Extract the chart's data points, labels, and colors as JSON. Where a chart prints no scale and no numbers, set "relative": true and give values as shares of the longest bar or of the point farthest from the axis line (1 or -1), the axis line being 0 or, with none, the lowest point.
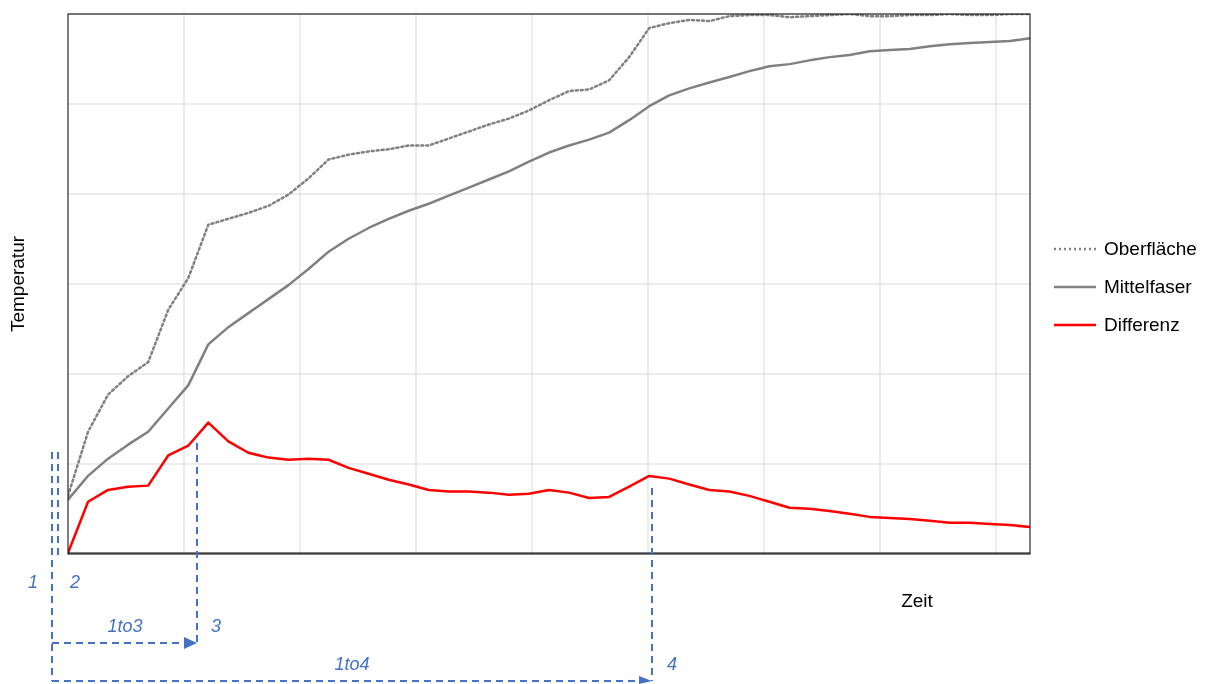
{
  "chart_data": {
    "type": "line",
    "relative": true,
    "xlabel": "Zeit",
    "ylabel": "Temperatur",
    "grid": true,
    "legend": "right",
    "marker": "none",
    "categories": [
      null,
      null,
      null,
      null,
      null,
      null,
      null,
      null,
      null,
      null,
      null,
      null,
      null,
      null,
      null,
      null,
      null,
      null,
      null,
      null,
      null,
      null,
      null,
      null,
      null,
      null,
      null,
      null,
      null,
      null,
      null,
      null,
      null,
      null,
      null,
      null,
      null,
      null,
      null,
      null,
      null,
      null,
      null,
      null,
      null,
      null,
      null,
      null,
      null
    ],
    "series": [
      {
        "name": "Oberfläche",
        "color": "#808080",
        "line_style": "dotted",
        "values": [
          0.106,
          0.225,
          0.294,
          0.328,
          0.354,
          0.451,
          0.51,
          0.609,
          0.62,
          0.631,
          0.644,
          0.665,
          0.695,
          0.73,
          0.739,
          0.745,
          0.749,
          0.756,
          0.756,
          0.769,
          0.782,
          0.795,
          0.806,
          0.821,
          0.84,
          0.857,
          0.86,
          0.877,
          0.92,
          0.974,
          0.983,
          0.989,
          0.987,
          0.996,
          0.998,
          0.998,
          0.994,
          0.996,
          0.998,
          1,
          0.996,
          0.996,
          0.998,
          0.998,
          1,
          0.998,
          0.998,
          1,
          1
        ]
      },
      {
        "name": "Mittelfaser",
        "color": "#808080",
        "line_style": "solid",
        "values": [
          0.099,
          0.143,
          0.175,
          0.201,
          0.225,
          0.268,
          0.311,
          0.387,
          0.419,
          0.445,
          0.471,
          0.497,
          0.527,
          0.559,
          0.583,
          0.603,
          0.62,
          0.635,
          0.648,
          0.663,
          0.678,
          0.693,
          0.708,
          0.726,
          0.743,
          0.756,
          0.767,
          0.78,
          0.803,
          0.829,
          0.849,
          0.862,
          0.873,
          0.883,
          0.894,
          0.903,
          0.907,
          0.914,
          0.92,
          0.924,
          0.931,
          0.933,
          0.935,
          0.94,
          0.944,
          0.946,
          0.948,
          0.95,
          0.955
        ]
      },
      {
        "name": "Differenz",
        "color": "#ff0000",
        "line_style": "solid",
        "values": [
          0,
          0.095,
          0.117,
          0.123,
          0.125,
          0.181,
          0.199,
          0.242,
          0.207,
          0.186,
          0.177,
          0.173,
          0.175,
          0.173,
          0.158,
          0.147,
          0.136,
          0.127,
          0.117,
          0.114,
          0.114,
          0.112,
          0.108,
          0.11,
          0.117,
          0.112,
          0.102,
          0.104,
          0.123,
          0.143,
          0.138,
          0.127,
          0.117,
          0.114,
          0.106,
          0.095,
          0.084,
          0.082,
          0.078,
          0.073,
          0.067,
          0.065,
          0.063,
          0.06,
          0.056,
          0.056,
          0.054,
          0.052,
          0.048
        ]
      }
    ],
    "annotations": [
      "1",
      "2",
      "3",
      "4",
      "1to3",
      "1to4"
    ]
  }
}
